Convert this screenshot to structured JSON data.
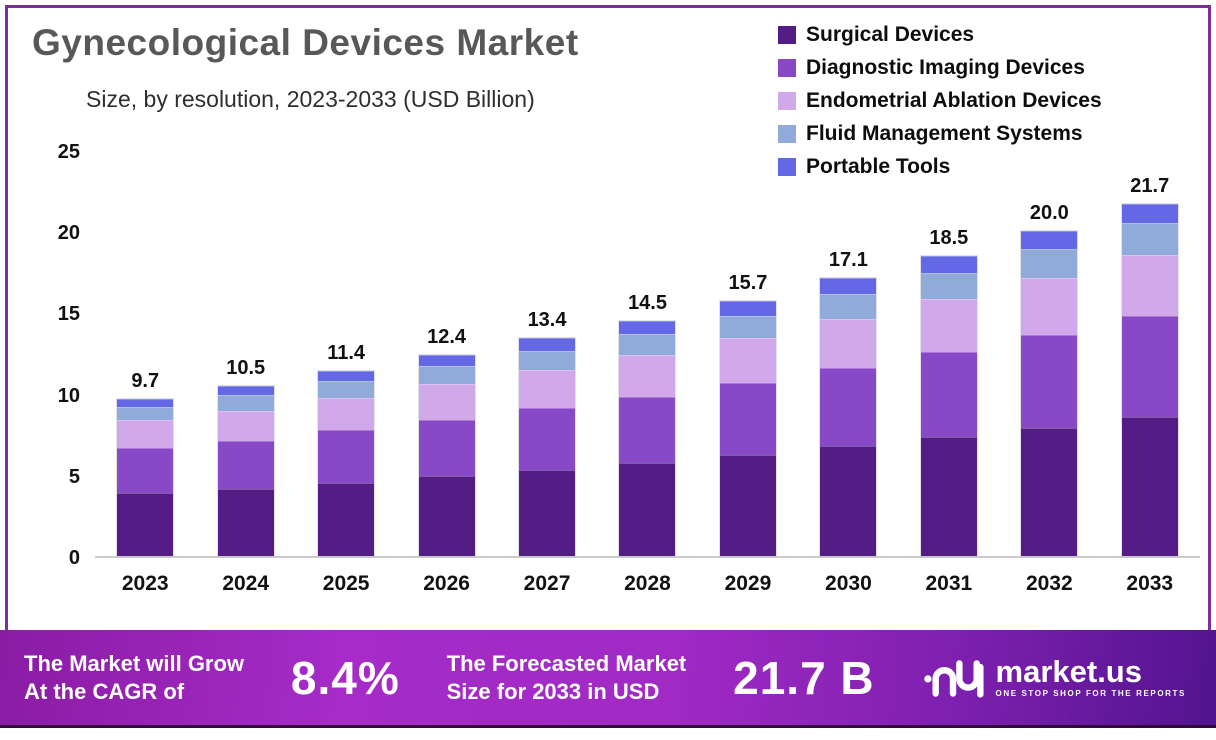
{
  "page": {
    "title": "Gynecological Devices Market",
    "subtitle": "Size, by resolution, 2023-2033 (USD Billion)",
    "frame_color": "#7f2d98"
  },
  "chart_data": {
    "type": "bar",
    "stacked": true,
    "title": "Gynecological Devices Market",
    "subtitle": "Size, by resolution, 2023-2033 (USD Billion)",
    "xlabel": "",
    "ylabel": "USD Billion",
    "ylim": [
      0,
      25
    ],
    "yticks": [
      0,
      5,
      10,
      15,
      20,
      25
    ],
    "grid": false,
    "legend_position": "top-right",
    "categories": [
      "2023",
      "2024",
      "2025",
      "2026",
      "2027",
      "2028",
      "2029",
      "2030",
      "2031",
      "2032",
      "2033"
    ],
    "totals": [
      "9.7",
      "10.5",
      "11.4",
      "12.4",
      "13.4",
      "14.5",
      "15.7",
      "17.1",
      "18.5",
      "20.0",
      "21.7"
    ],
    "series": [
      {
        "name": "Surgical Devices",
        "color": "#531d85",
        "values": [
          3.85,
          4.1,
          4.5,
          4.9,
          5.3,
          5.7,
          6.2,
          6.75,
          7.3,
          7.9,
          8.55
        ]
      },
      {
        "name": "Diagnostic Imaging Devices",
        "color": "#8849c6",
        "values": [
          2.8,
          3.0,
          3.25,
          3.5,
          3.8,
          4.1,
          4.45,
          4.85,
          5.25,
          5.7,
          6.2
        ]
      },
      {
        "name": "Endometrial Ablation Devices",
        "color": "#d1a8ea",
        "values": [
          1.7,
          1.85,
          2.0,
          2.2,
          2.35,
          2.55,
          2.75,
          3.0,
          3.25,
          3.5,
          3.8
        ]
      },
      {
        "name": "Fluid Management Systems",
        "color": "#90aad9",
        "values": [
          0.85,
          0.95,
          1.0,
          1.1,
          1.2,
          1.3,
          1.4,
          1.55,
          1.65,
          1.8,
          1.95
        ]
      },
      {
        "name": "Portable Tools",
        "color": "#6467e6",
        "values": [
          0.5,
          0.6,
          0.65,
          0.7,
          0.75,
          0.85,
          0.9,
          0.95,
          1.05,
          1.1,
          1.2
        ]
      }
    ]
  },
  "banner": {
    "cagr_label_line1": "The Market will Grow",
    "cagr_label_line2": "At the CAGR of",
    "cagr_value": "8.4%",
    "forecast_label_line1": "The Forecasted Market",
    "forecast_label_line2": "Size for 2033 in USD",
    "forecast_value": "21.7 B",
    "brand": "market.us",
    "brand_tagline": "ONE STOP SHOP FOR THE REPORTS"
  }
}
